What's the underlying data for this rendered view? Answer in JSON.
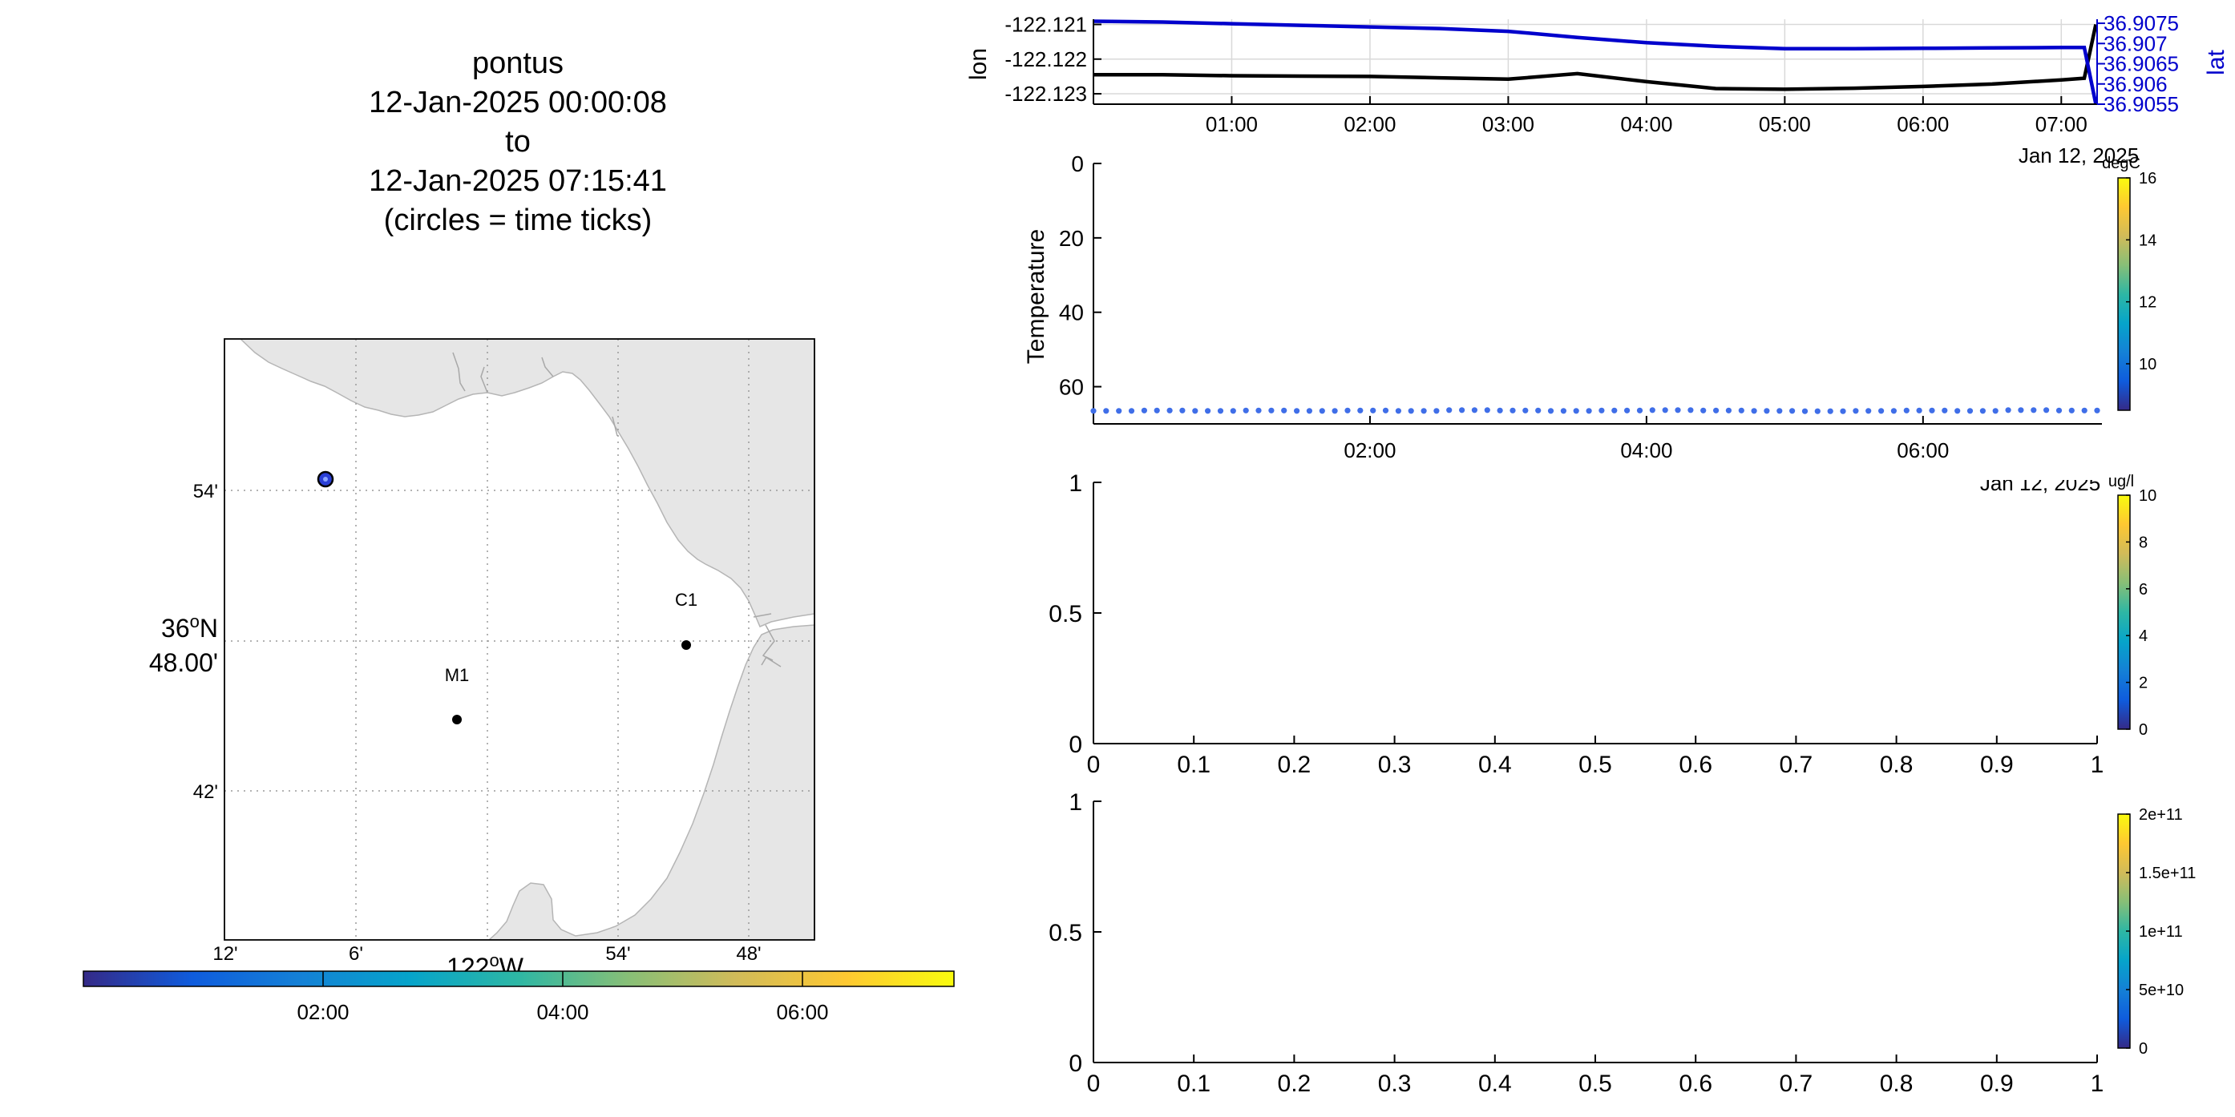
{
  "title": {
    "lines": [
      "pontus",
      "12-Jan-2025 00:00:08",
      "to",
      "12-Jan-2025 07:15:41",
      "(circles = time ticks)"
    ]
  },
  "map": {
    "lat_ticks": [
      "54'",
      "48.00'",
      "42'"
    ],
    "lat_degree": "36",
    "lat_hemisphere": "N",
    "lon_ticks": [
      "12'",
      "6'",
      "54'",
      "48'"
    ],
    "lon_degree": "122",
    "lon_hemisphere": "W",
    "degree_symbol": "o",
    "markers": [
      {
        "label": "C1"
      },
      {
        "label": "M1"
      }
    ],
    "track_start_color": "#2a3fd6",
    "land_color": "#e6e6e6"
  },
  "time_colorbar": {
    "ticks": [
      "02:00",
      "04:00",
      "06:00"
    ]
  },
  "colors": {
    "lon_line": "#000000",
    "lat_line": "#0000cc",
    "temperature_dots": "#3f6ee8",
    "grid": "#d9d9d9",
    "parula": [
      "#352a87",
      "#0f5cdd",
      "#1481d6",
      "#06a4ca",
      "#2eb7a4",
      "#87bf77",
      "#d1bb59",
      "#fec832",
      "#f9fb0e"
    ]
  },
  "chart_data": [
    {
      "type": "line",
      "ylabel": "lon",
      "y2label": "lat",
      "x": [
        "00:00",
        "00:30",
        "01:00",
        "01:30",
        "02:00",
        "02:30",
        "03:00",
        "03:30",
        "04:00",
        "04:30",
        "05:00",
        "05:30",
        "06:00",
        "06:30",
        "07:00",
        "07:10",
        "07:15"
      ],
      "series": [
        {
          "name": "lon",
          "axis": "left",
          "values": [
            -122.12245,
            -122.12245,
            -122.12248,
            -122.12249,
            -122.1225,
            -122.12254,
            -122.12258,
            -122.12242,
            -122.12265,
            -122.12285,
            -122.12287,
            -122.12284,
            -122.12279,
            -122.12272,
            -122.1226,
            -122.12255,
            -122.121
          ]
        },
        {
          "name": "lat",
          "axis": "right",
          "values": [
            36.90755,
            36.90753,
            36.90749,
            36.90745,
            36.90741,
            36.90737,
            36.9073,
            36.90715,
            36.90702,
            36.90693,
            36.90687,
            36.90687,
            36.90688,
            36.90689,
            36.9069,
            36.9069,
            36.9055
          ]
        }
      ],
      "ylim": [
        -122.1233,
        -122.12085
      ],
      "y2lim": [
        36.9055,
        36.9076
      ],
      "yticks": [
        "-122.121",
        "-122.122",
        "-122.123"
      ],
      "y2ticks": [
        "36.9075",
        "36.907",
        "36.9065",
        "36.906",
        "36.9055"
      ],
      "xticks": [
        "01:00",
        "02:00",
        "03:00",
        "04:00",
        "05:00",
        "06:00",
        "07:00"
      ],
      "xdate_label": "Jan 12, 2025",
      "grid": true
    },
    {
      "type": "scatter",
      "ylabel": "Temperature",
      "ylim": [
        0,
        70
      ],
      "y_reversed": true,
      "yticks": [
        "0",
        "20",
        "40",
        "60"
      ],
      "xticks": [
        "02:00",
        "04:00",
        "06:00"
      ],
      "xdate_label": "Jan 12, 2025",
      "depth_values": [
        66.5,
        66.4,
        66.5,
        66.4,
        66.5,
        66.4,
        66.5,
        66.3,
        66.4,
        66.5,
        66.4,
        66.3,
        66.4,
        66.5,
        66.6,
        66.5,
        66.4,
        66.5,
        66.3,
        66.4
      ],
      "colorbar": {
        "unit": "degC",
        "ticks": [
          "16",
          "14",
          "12",
          "10"
        ],
        "range": [
          8.5,
          16
        ]
      }
    },
    {
      "type": "scatter",
      "xlim": [
        0,
        1
      ],
      "ylim": [
        0,
        1
      ],
      "xticks": [
        "0",
        "0.1",
        "0.2",
        "0.3",
        "0.4",
        "0.5",
        "0.6",
        "0.7",
        "0.8",
        "0.9",
        "1"
      ],
      "yticks": [
        "1",
        "0.5",
        "0"
      ],
      "colorbar": {
        "unit": "ug/l",
        "ticks": [
          "10",
          "8",
          "6",
          "4",
          "2",
          "0"
        ],
        "range": [
          0,
          10
        ]
      }
    },
    {
      "type": "scatter",
      "xlim": [
        0,
        1
      ],
      "ylim": [
        0,
        1
      ],
      "xticks": [
        "0",
        "0.1",
        "0.2",
        "0.3",
        "0.4",
        "0.5",
        "0.6",
        "0.7",
        "0.8",
        "0.9",
        "1"
      ],
      "yticks": [
        "1",
        "0.5",
        "0"
      ],
      "colorbar": {
        "unit": "",
        "ticks": [
          "2e+11",
          "1.5e+11",
          "1e+11",
          "5e+10",
          "0"
        ],
        "range": [
          0,
          200000000000
        ]
      }
    }
  ]
}
